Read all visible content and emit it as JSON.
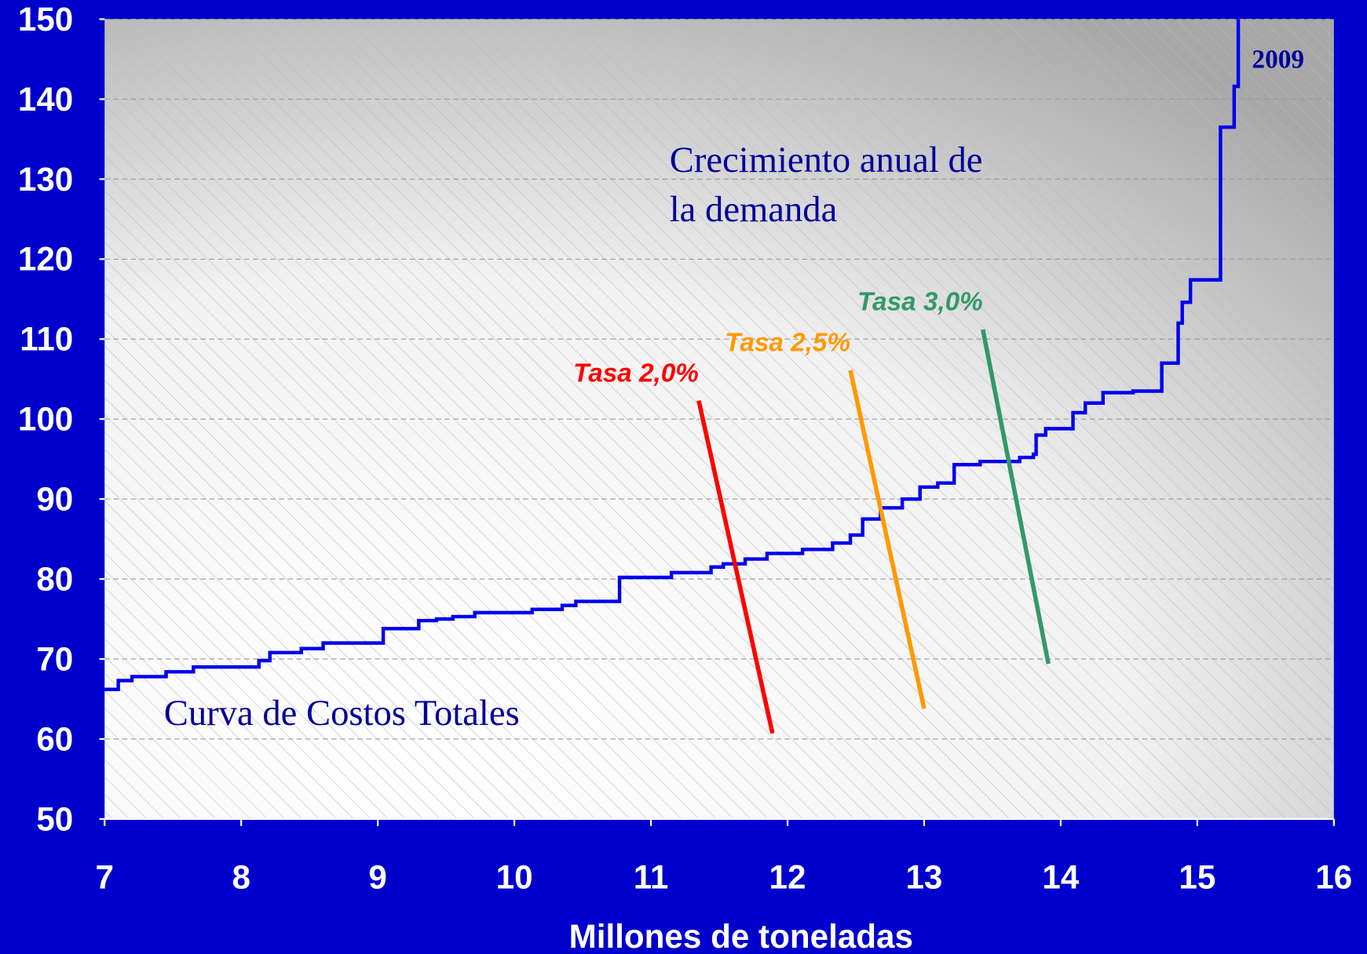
{
  "chart_data": {
    "type": "line",
    "step": "post",
    "xlabel": "Millones de toneladas",
    "xlim": [
      7,
      16
    ],
    "xticks": [
      7,
      8,
      9,
      10,
      11,
      12,
      13,
      14,
      15,
      16
    ],
    "ylim": [
      50,
      150
    ],
    "yticks": [
      50,
      60,
      70,
      80,
      90,
      100,
      110,
      120,
      130,
      140,
      150
    ],
    "grid": true,
    "series": [
      {
        "name": "Curva de Costos Totales",
        "color": "#0000ee",
        "x": [
          7,
          7.1,
          7.2,
          7.45,
          7.65,
          8.13,
          8.21,
          8.44,
          8.6,
          9.04,
          9.3,
          9.43,
          9.55,
          9.71,
          10.13,
          10.35,
          10.45,
          10.77,
          11.15,
          11.44,
          11.53,
          11.69,
          11.85,
          12.11,
          12.33,
          12.46,
          12.55,
          12.68,
          12.84,
          12.97,
          13.1,
          13.22,
          13.41,
          13.7,
          13.8,
          13.82,
          13.89,
          14.09,
          14.18,
          14.31,
          14.53,
          14.74,
          14.86,
          14.89,
          14.95,
          15.17,
          15.27,
          15.3
        ],
        "values": [
          66.2,
          67.3,
          67.8,
          68.4,
          69,
          69.8,
          70.8,
          71.3,
          72,
          73.8,
          74.8,
          75,
          75.3,
          75.8,
          76.2,
          76.7,
          77.2,
          80.2,
          80.8,
          81.5,
          81.9,
          82.5,
          83.2,
          83.7,
          84.5,
          85.5,
          87.5,
          88.9,
          90,
          91.5,
          92,
          94.3,
          94.7,
          95.2,
          95.6,
          98,
          98.8,
          100.8,
          102,
          103.3,
          103.5,
          107,
          112,
          114.6,
          117.4,
          136.5,
          141.6,
          150
        ]
      }
    ],
    "demand_lines": [
      {
        "name": "Tasa 2,0%",
        "color": "#ff0000",
        "x": [
          11.35,
          11.89
        ],
        "values": [
          102.3,
          60.7
        ]
      },
      {
        "name": "Tasa 2,5%",
        "color": "#ff9900",
        "x": [
          12.46,
          13.0
        ],
        "values": [
          106.1,
          63.8
        ]
      },
      {
        "name": "Tasa 3,0%",
        "color": "#339966",
        "x": [
          13.43,
          13.91
        ],
        "values": [
          111.2,
          69.4
        ]
      }
    ],
    "annotations": [
      "Crecimiento anual de",
      "la demanda",
      "2009"
    ]
  }
}
